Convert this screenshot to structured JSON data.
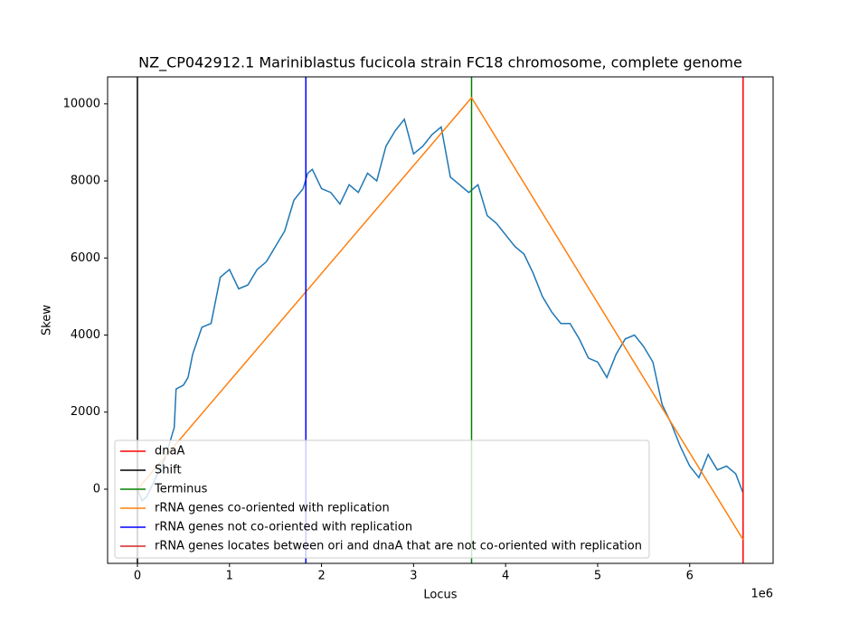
{
  "chart_data": {
    "type": "line",
    "title": "NZ_CP042912.1 Mariniblastus fucicola strain FC18 chromosome, complete genome",
    "xlabel": "Locus",
    "ylabel": "Skew",
    "x_offset_label": "1e6",
    "xlim": [
      -324000,
      6906000
    ],
    "ylim": [
      -1925,
      10700
    ],
    "xticks": [
      0,
      {
        "value": 1000000,
        "label": "1"
      },
      {
        "value": 2000000,
        "label": "2"
      },
      {
        "value": 3000000,
        "label": "3"
      },
      {
        "value": 4000000,
        "label": "4"
      },
      {
        "value": 5000000,
        "label": "5"
      },
      {
        "value": 6000000,
        "label": "6"
      }
    ],
    "yticks": [
      0,
      2000,
      4000,
      6000,
      8000,
      10000
    ],
    "legend": "lower left",
    "series": [
      {
        "kind": "line",
        "color": "#1f77b4",
        "x": [
          0,
          50000,
          100000,
          200000,
          300000,
          400000,
          420000,
          500000,
          550000,
          600000,
          700000,
          800000,
          900000,
          1000000,
          1100000,
          1200000,
          1300000,
          1400000,
          1500000,
          1600000,
          1700000,
          1800000,
          1850000,
          1900000,
          2000000,
          2100000,
          2200000,
          2300000,
          2400000,
          2500000,
          2600000,
          2700000,
          2800000,
          2900000,
          3000000,
          3100000,
          3200000,
          3300000,
          3400000,
          3500000,
          3600000,
          3700000,
          3800000,
          3900000,
          4000000,
          4100000,
          4200000,
          4300000,
          4400000,
          4500000,
          4600000,
          4700000,
          4800000,
          4900000,
          5000000,
          5100000,
          5200000,
          5300000,
          5400000,
          5500000,
          5600000,
          5700000,
          5800000,
          5900000,
          6000000,
          6100000,
          6200000,
          6300000,
          6400000,
          6500000,
          6580000
        ],
        "values": [
          0,
          -300,
          -200,
          300,
          800,
          1600,
          2600,
          2700,
          2900,
          3500,
          4200,
          4300,
          5500,
          5700,
          5200,
          5300,
          5700,
          5900,
          6300,
          6700,
          7500,
          7800,
          8200,
          8300,
          7800,
          7700,
          7400,
          7900,
          7700,
          8200,
          8000,
          8900,
          9300,
          9600,
          8700,
          8900,
          9200,
          9400,
          8100,
          7900,
          7700,
          7900,
          7100,
          6900,
          6600,
          6300,
          6100,
          5600,
          5000,
          4600,
          4300,
          4300,
          3900,
          3400,
          3300,
          2900,
          3500,
          3900,
          4000,
          3700,
          3300,
          2200,
          1700,
          1100,
          600,
          300,
          900,
          500,
          600,
          400,
          -100
        ]
      },
      {
        "kind": "vline",
        "name": "dnaA",
        "color": "#ff0000",
        "x": [
          6580000
        ]
      },
      {
        "kind": "vline",
        "name": "Shift",
        "color": "#000000",
        "x": [
          0
        ]
      },
      {
        "kind": "vline",
        "name": "Terminus",
        "color": "#008000",
        "x": [
          3630000
        ]
      },
      {
        "kind": "line",
        "name": "rRNA genes co-oriented with replication",
        "color": "#ff7f0e",
        "x": [
          0,
          3630000,
          6580000
        ],
        "values": [
          0,
          10160,
          -1310
        ]
      },
      {
        "kind": "vline",
        "name": "rRNA genes not co-oriented with replication",
        "color": "#0000ff",
        "x": [
          1830000
        ]
      },
      {
        "kind": "vline",
        "name": "rRNA genes locates between ori and dnaA that are not co-oriented with replication",
        "color": "#d62728",
        "x": []
      }
    ]
  }
}
